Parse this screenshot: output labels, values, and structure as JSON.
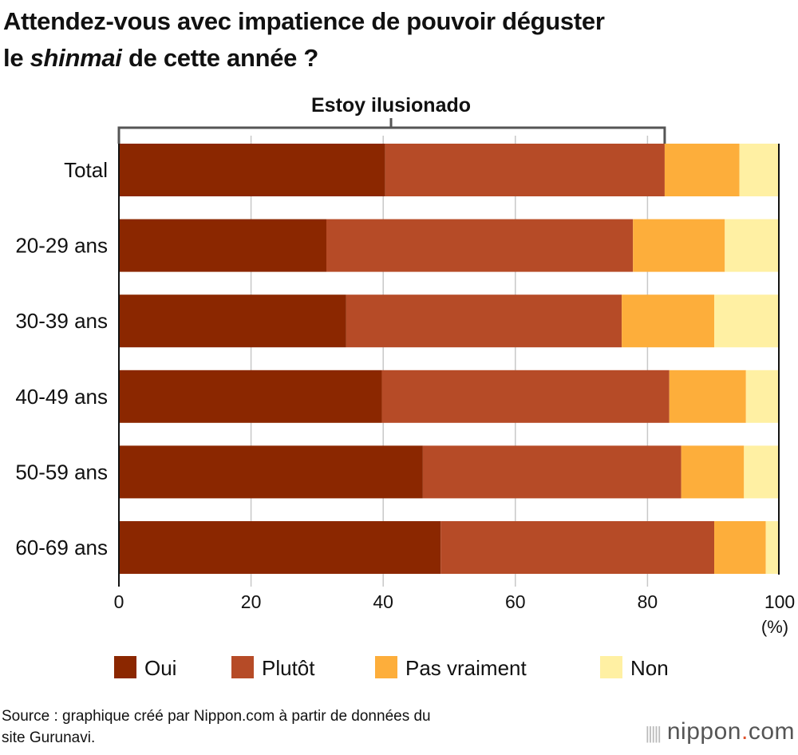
{
  "chart_data": {
    "type": "bar",
    "orientation": "horizontal",
    "stacked": true,
    "title_parts": [
      "Attendez-vous avec impatience de pouvoir déguster",
      "le ",
      "shinmai",
      " de cette année ?"
    ],
    "bracket_label": "Estoy ilusionado",
    "categories": [
      "Total",
      "20-29 ans",
      "30-39 ans",
      "40-49 ans",
      "50-59 ans",
      "60-69 ans"
    ],
    "series": [
      {
        "name": "Oui",
        "color": "#8b2700",
        "values": [
          40.3,
          31.4,
          34.4,
          39.8,
          46.0,
          48.7
        ]
      },
      {
        "name": "Plutôt",
        "color": "#b64b27",
        "values": [
          42.3,
          46.4,
          41.7,
          43.5,
          39.1,
          41.4
        ]
      },
      {
        "name": "Pas vraiment",
        "color": "#fdae3b",
        "values": [
          11.3,
          13.9,
          14.0,
          11.6,
          9.5,
          7.8
        ]
      },
      {
        "name": "Non",
        "color": "#fff0a3",
        "values": [
          6.1,
          8.3,
          9.9,
          5.1,
          5.4,
          2.1
        ]
      }
    ],
    "xlim": [
      0,
      100
    ],
    "xticks": [
      "0",
      "20",
      "40",
      "60",
      "80",
      "100"
    ],
    "xunit": "(%)",
    "grid": true,
    "legend_placement": "bottom"
  },
  "source": [
    "Source : graphique créé par Nippon.com à partir de données du",
    "site Gurunavi."
  ],
  "logo": {
    "name": "nippon",
    "dot": ".",
    "tld": "com"
  }
}
